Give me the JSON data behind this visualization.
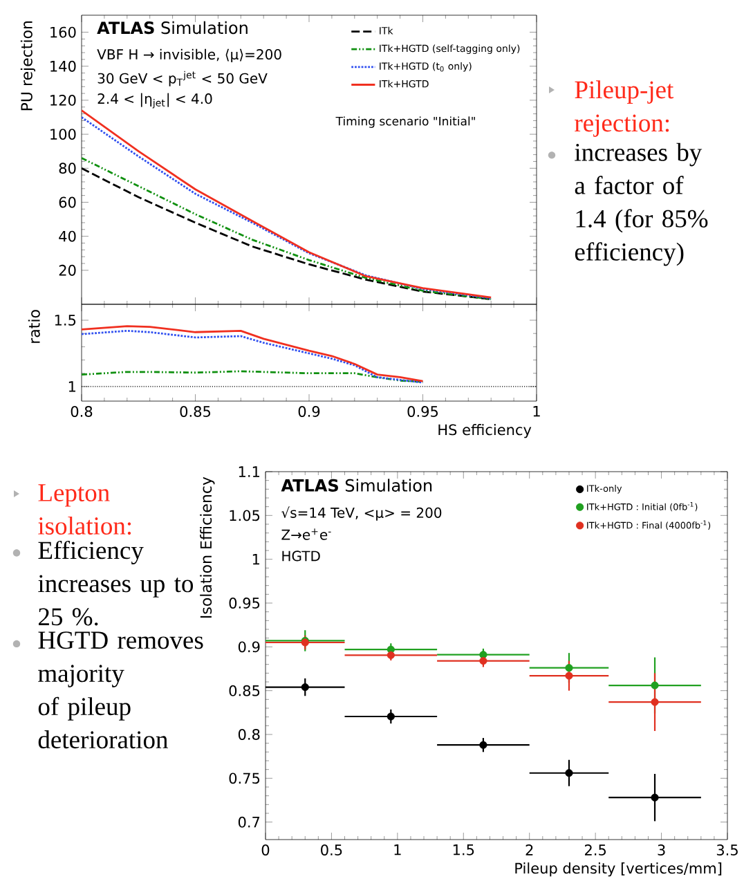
{
  "chart_data": [
    {
      "type": "line",
      "ylabel": "PU rejection",
      "xlim": [
        0.8,
        1
      ],
      "ylim": [
        0,
        170
      ],
      "xticks": [
        0.8,
        0.85,
        0.9,
        0.95,
        1
      ],
      "yticks": [
        20,
        40,
        60,
        80,
        100,
        120,
        140,
        160
      ],
      "tick_labels": "y",
      "legend": "top right",
      "subtitle": "Timing scenario \"Initial\"",
      "annotations": [
        "**ATLAS** Simulation",
        "VBF H → invisible, ⟨μ⟩=200",
        "30 GeV < p$_{T}$$^{jet}$ < 50 GeV",
        "2.4 < |η$_{jet}$| < 4.0"
      ],
      "x": [
        0.8,
        0.825,
        0.85,
        0.875,
        0.9,
        0.925,
        0.95,
        0.98
      ],
      "series": [
        {
          "name": "ITk",
          "color": "#000000",
          "line_style": "dashed",
          "values": [
            80,
            63,
            48,
            34,
            23.5,
            14.5,
            7.5,
            3
          ]
        },
        {
          "name": "ITk+HGTD (self-tagging only)",
          "color": "#109010",
          "line_style": "dashdotted",
          "values": [
            86,
            69.5,
            53,
            38,
            26,
            15.5,
            8,
            3
          ]
        },
        {
          "name": "ITk+HGTD (t$_{0}$ only)",
          "color": "#3050f0",
          "line_style": "dotted",
          "values": [
            110,
            87,
            65,
            48,
            30,
            17,
            9,
            3.5
          ]
        },
        {
          "name": "ITk+HGTD",
          "color": "#f03020",
          "line_style": "solid",
          "values": [
            114,
            90,
            67.6,
            49,
            30.6,
            16.5,
            9.5,
            4
          ]
        }
      ]
    },
    {
      "type": "line",
      "xlabel": "HS efficiency",
      "ylabel": "ratio",
      "xlim": [
        0.8,
        1
      ],
      "ylim": [
        0.89,
        1.62
      ],
      "xticks": [
        0.8,
        0.85,
        0.9,
        0.95,
        1
      ],
      "yticks": [
        1,
        1.5
      ],
      "ref_lines": [
        {
          "axis": "y",
          "value": 1,
          "color": "#000000",
          "line_style": "dotted"
        }
      ],
      "x": [
        0.8,
        0.82,
        0.83,
        0.85,
        0.87,
        0.88,
        0.9,
        0.91,
        0.92,
        0.93,
        0.94,
        0.95
      ],
      "series": [
        {
          "color": "#109010",
          "line_style": "dashdotted",
          "values": [
            1.09,
            1.11,
            1.11,
            1.105,
            1.115,
            1.11,
            1.1,
            1.1,
            1.1,
            1.07,
            1.045,
            1.035
          ]
        },
        {
          "color": "#3050f0",
          "line_style": "dotted",
          "values": [
            1.395,
            1.42,
            1.41,
            1.37,
            1.38,
            1.33,
            1.25,
            1.21,
            1.16,
            1.07,
            1.05,
            1.03
          ]
        },
        {
          "color": "#f03020",
          "line_style": "solid",
          "values": [
            1.43,
            1.455,
            1.45,
            1.41,
            1.42,
            1.36,
            1.27,
            1.23,
            1.17,
            1.09,
            1.07,
            1.04
          ]
        }
      ]
    },
    {
      "type": "scatter",
      "xlabel": "Pileup density [vertices/mm]",
      "ylabel": "Isolation Efficiency",
      "xlim": [
        0,
        3.5
      ],
      "ylim": [
        0.68,
        1.1
      ],
      "xticks": [
        0,
        0.5,
        1,
        1.5,
        2,
        2.5,
        3,
        3.5
      ],
      "yticks": [
        0.7,
        0.75,
        0.8,
        0.85,
        0.9,
        0.95,
        1,
        1.05,
        1.1
      ],
      "legend": "top right",
      "annotations": [
        "**ATLAS** Simulation",
        "√s=14 TeV, <μ> = 200",
        "Z→e$^{+}$e$^{-}$",
        "HGTD"
      ],
      "x": [
        0.3,
        0.95,
        1.65,
        2.3,
        2.95
      ],
      "series": [
        {
          "name": "ITk-only",
          "color": "#000000",
          "values": [
            0.854,
            0.8205,
            0.788,
            0.756,
            0.728
          ],
          "errors": [
            0.01,
            0.008,
            0.008,
            0.015,
            0.027
          ],
          "xerrors": [
            [
              0,
              0.6
            ],
            [
              0.6,
              1.3
            ],
            [
              1.3,
              2
            ],
            [
              2,
              2.6
            ],
            [
              2.6,
              3.3
            ]
          ]
        },
        {
          "name": "ITk+HGTD : Initial (0fb$^{-1}$)",
          "color": "#20a020",
          "values": [
            0.907,
            0.897,
            0.891,
            0.876,
            0.856
          ],
          "errors": [
            0.012,
            0.007,
            0.007,
            0.017,
            0.032
          ],
          "xerrors": [
            [
              0,
              0.6
            ],
            [
              0.6,
              1.3
            ],
            [
              1.3,
              2
            ],
            [
              2,
              2.6
            ],
            [
              2.6,
              3.3
            ]
          ]
        },
        {
          "name": "ITk+HGTD : Final (4000fb$^{-1}$)",
          "color": "#e03020",
          "values": [
            0.905,
            0.8905,
            0.884,
            0.867,
            0.837
          ],
          "errors": [
            0.008,
            0.006,
            0.007,
            0.017,
            0.033
          ],
          "xerrors": [
            [
              0,
              0.6
            ],
            [
              0.6,
              1.3
            ],
            [
              1.3,
              2
            ],
            [
              2,
              2.6
            ],
            [
              2.6,
              3.3
            ]
          ]
        }
      ]
    },
    {
      "type": "other",
      "title": "Pileup-jet rejection:",
      "annotations": [
        "increases by a factor  of 1.4 (for 85% efficiency)"
      ]
    },
    {
      "type": "other",
      "title": "Lepton isolation:",
      "annotations": [
        "Efficiency increases up to 25 %.",
        "HGTD removes majority of pileup deterioration"
      ]
    }
  ]
}
